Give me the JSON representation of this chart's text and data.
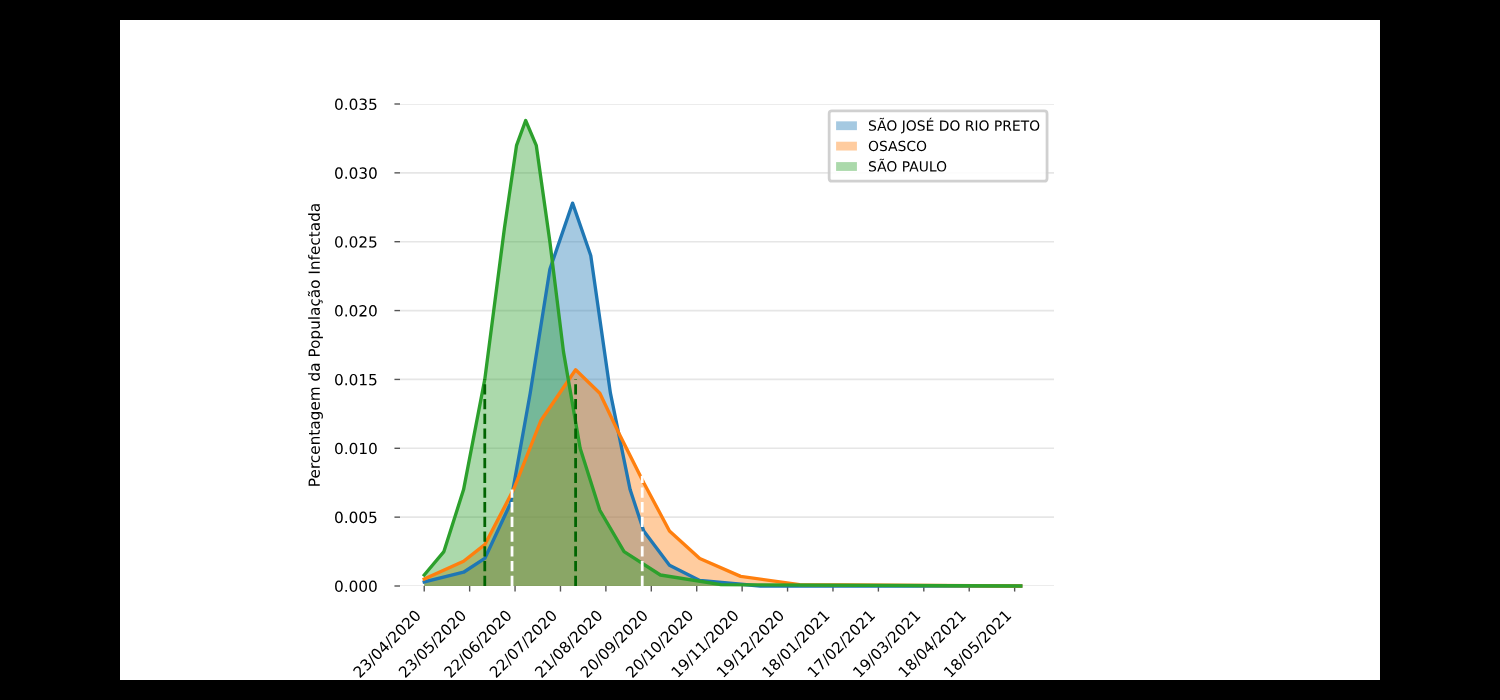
{
  "chart_data": {
    "type": "area",
    "ylabel": "Percentagem da População Infectada",
    "xlim": [
      "2020-04-07",
      "2021-06-13"
    ],
    "ylim": [
      0,
      0.035
    ],
    "xticks": [
      {
        "value": "2020-04-23",
        "label": "23/04/2020"
      },
      {
        "value": "2020-05-23",
        "label": "23/05/2020"
      },
      {
        "value": "2020-06-22",
        "label": "22/06/2020"
      },
      {
        "value": "2020-07-22",
        "label": "22/07/2020"
      },
      {
        "value": "2020-08-21",
        "label": "21/08/2020"
      },
      {
        "value": "2020-09-20",
        "label": "20/09/2020"
      },
      {
        "value": "2020-10-20",
        "label": "20/10/2020"
      },
      {
        "value": "2020-11-19",
        "label": "19/11/2020"
      },
      {
        "value": "2020-12-19",
        "label": "19/12/2020"
      },
      {
        "value": "2021-01-18",
        "label": "18/01/2021"
      },
      {
        "value": "2021-02-17",
        "label": "17/02/2021"
      },
      {
        "value": "2021-03-19",
        "label": "19/03/2021"
      },
      {
        "value": "2021-04-18",
        "label": "18/04/2021"
      },
      {
        "value": "2021-05-18",
        "label": "18/05/2021"
      }
    ],
    "yticks": [
      {
        "value": 0,
        "label": "0.000"
      },
      {
        "value": 0.005,
        "label": "0.005"
      },
      {
        "value": 0.01,
        "label": "0.010"
      },
      {
        "value": 0.015,
        "label": "0.015"
      },
      {
        "value": 0.02,
        "label": "0.020"
      },
      {
        "value": 0.025,
        "label": "0.025"
      },
      {
        "value": 0.03,
        "label": "0.030"
      },
      {
        "value": 0.035,
        "label": "0.035"
      }
    ],
    "grid": "y",
    "legend": "top right",
    "series": [
      {
        "name": "SÃO JOSÉ DO RIO PRETO",
        "color": "#1f77b4",
        "x": [
          "2020-04-23",
          "2020-05-19",
          "2020-06-02",
          "2020-06-19",
          "2020-07-02",
          "2020-07-15",
          "2020-07-30",
          "2020-08-11",
          "2020-08-24",
          "2020-09-06",
          "2020-09-15",
          "2020-10-02",
          "2020-10-22",
          "2020-12-01",
          "2021-05-22"
        ],
        "values": [
          0.0003,
          0.001,
          0.002,
          0.006,
          0.014,
          0.023,
          0.0278,
          0.024,
          0.014,
          0.007,
          0.004,
          0.0015,
          0.0004,
          0,
          0
        ]
      },
      {
        "name": "OSASCO",
        "color": "#ff7f0e",
        "x": [
          "2020-04-23",
          "2020-05-19",
          "2020-06-02",
          "2020-06-21",
          "2020-07-09",
          "2020-08-01",
          "2020-08-17",
          "2020-08-30",
          "2020-09-15",
          "2020-10-02",
          "2020-10-22",
          "2020-11-18",
          "2020-12-27",
          "2021-05-22"
        ],
        "values": [
          0.0005,
          0.0018,
          0.003,
          0.007,
          0.012,
          0.0157,
          0.014,
          0.011,
          0.0075,
          0.004,
          0.002,
          0.0007,
          0.0001,
          0
        ]
      },
      {
        "name": "SÃO PAULO",
        "color": "#2ca02c",
        "x": [
          "2020-04-23",
          "2020-05-06",
          "2020-05-19",
          "2020-06-02",
          "2020-06-15",
          "2020-06-23",
          "2020-06-29",
          "2020-07-06",
          "2020-07-15",
          "2020-07-24",
          "2020-08-04",
          "2020-08-17",
          "2020-09-02",
          "2020-09-26",
          "2020-11-05",
          "2021-05-22"
        ],
        "values": [
          0.0008,
          0.0025,
          0.007,
          0.015,
          0.026,
          0.032,
          0.0338,
          0.032,
          0.025,
          0.017,
          0.01,
          0.0055,
          0.0025,
          0.0008,
          0.0001,
          0
        ]
      },
      {
        "type": "line",
        "line_style": "dashed",
        "color": "#006400",
        "x": [
          "2020-06-02",
          "2020-06-02"
        ],
        "values": [
          0,
          0.015
        ]
      },
      {
        "type": "line",
        "line_style": "dashed",
        "color": "#006400",
        "x": [
          "2020-08-01",
          "2020-08-01"
        ],
        "values": [
          0,
          0.015
        ]
      },
      {
        "type": "line",
        "line_style": "dashed",
        "color": "#ffffff",
        "x": [
          "2020-06-20",
          "2020-06-20"
        ],
        "values": [
          0,
          0.007
        ]
      },
      {
        "type": "line",
        "line_style": "dashed",
        "color": "#ffffff",
        "x": [
          "2020-09-14",
          "2020-09-14"
        ],
        "values": [
          0,
          0.008
        ]
      }
    ]
  }
}
